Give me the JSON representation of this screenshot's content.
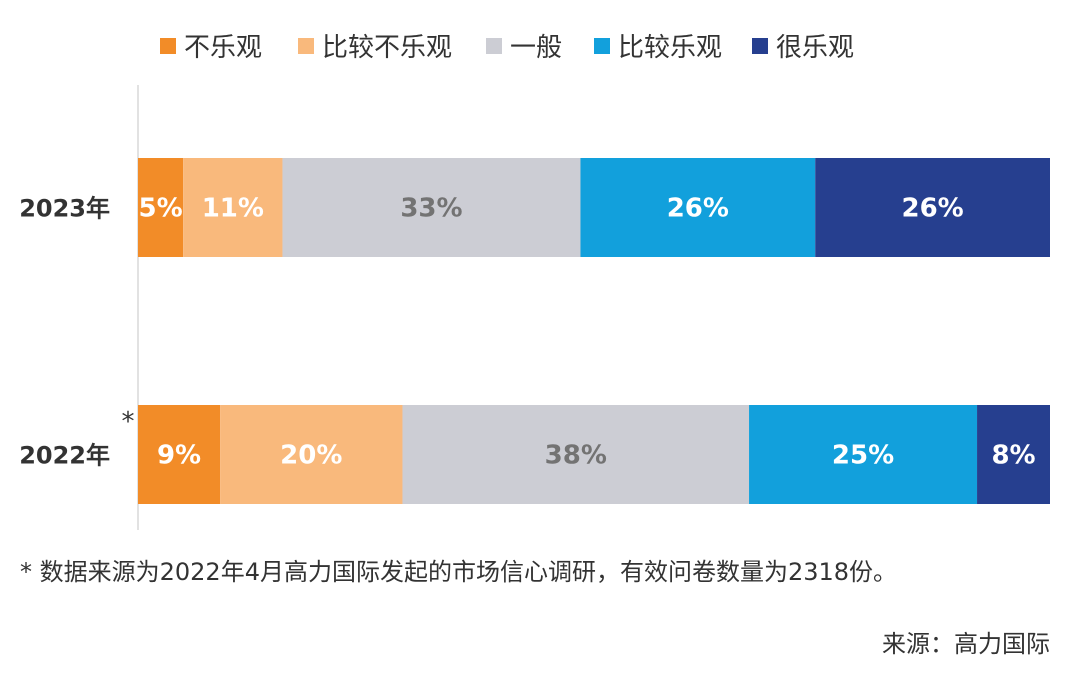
{
  "chart_data": {
    "type": "bar",
    "orientation": "horizontal",
    "stacked": true,
    "value_unit": "%",
    "categories": [
      "2023年",
      "2022年"
    ],
    "category_markers": {
      "2022年": "*"
    },
    "series": [
      {
        "name": "不乐观",
        "color": "#F28C28",
        "values": [
          5,
          9
        ],
        "labels": [
          "5%",
          "9%"
        ]
      },
      {
        "name": "比较不乐观",
        "color": "#F9B97C",
        "values": [
          11,
          20
        ],
        "labels": [
          "11%",
          "20%"
        ]
      },
      {
        "name": "一般",
        "color": "#CCCDD4",
        "values": [
          33,
          38
        ],
        "labels": [
          "33%",
          "38%"
        ]
      },
      {
        "name": "比较乐观",
        "color": "#12A0DC",
        "values": [
          26,
          25
        ],
        "labels": [
          "26%",
          "25%"
        ]
      },
      {
        "name": "很乐观",
        "color": "#263F8F",
        "values": [
          26,
          8
        ],
        "labels": [
          "26%",
          "8%"
        ]
      }
    ],
    "legend_position": "top",
    "grid": false
  },
  "footnote": "* 数据来源为2022年4月高力国际发起的市场信心调研，有效问卷数量为2318份。",
  "source": "来源：高力国际"
}
